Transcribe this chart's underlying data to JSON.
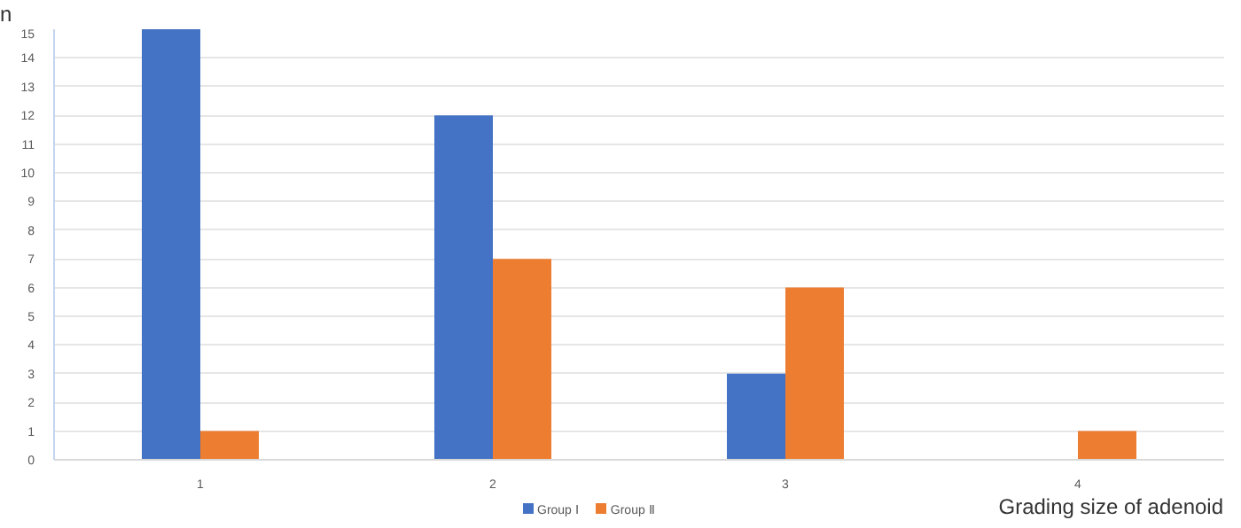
{
  "chart_data": {
    "type": "bar",
    "xlabel": "Grading size of adenoid",
    "ylabel": "n",
    "categories": [
      "1",
      "2",
      "3",
      "4"
    ],
    "series": [
      {
        "name": "Group Ⅰ",
        "color": "#4472c4",
        "values": [
          15,
          12,
          3,
          null
        ]
      },
      {
        "name": "Group Ⅱ",
        "color": "#ed7d31",
        "values": [
          1,
          7,
          6,
          1
        ]
      }
    ],
    "ylim": [
      0,
      15
    ],
    "yticks": [
      0,
      1,
      2,
      3,
      4,
      5,
      6,
      7,
      8,
      9,
      10,
      11,
      12,
      13,
      14,
      15
    ],
    "grid": "y",
    "legend": "bottom"
  }
}
